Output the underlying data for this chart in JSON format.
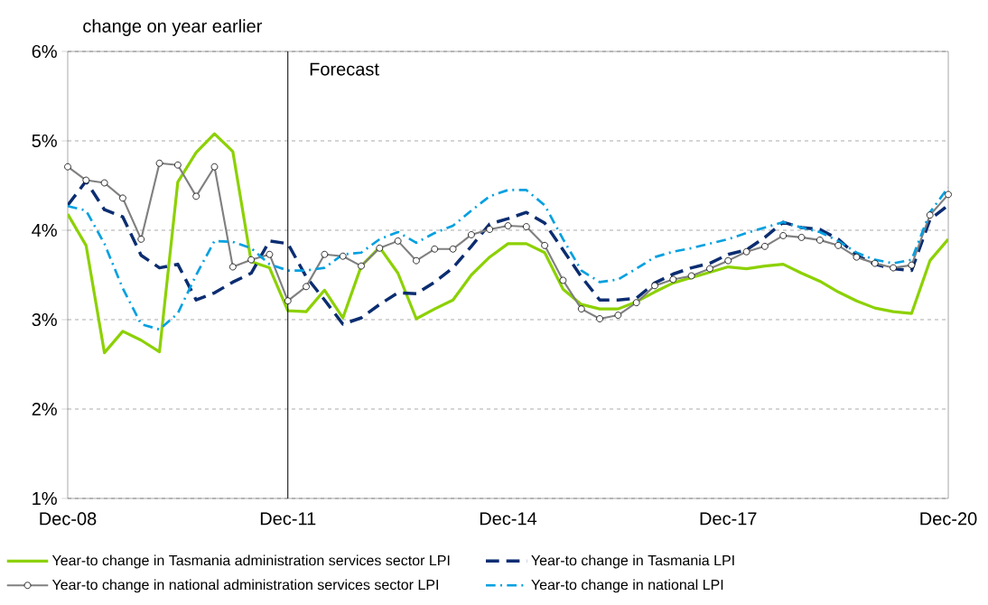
{
  "chart_data": {
    "type": "line",
    "ylabel": "change on year earlier",
    "categories": [
      "Dec-08",
      null,
      null,
      null,
      null,
      null,
      null,
      null,
      null,
      null,
      null,
      null,
      "Dec-11",
      null,
      null,
      null,
      null,
      null,
      null,
      null,
      null,
      null,
      null,
      null,
      "Dec-14",
      null,
      null,
      null,
      null,
      null,
      null,
      null,
      null,
      null,
      null,
      null,
      "Dec-17",
      null,
      null,
      null,
      null,
      null,
      null,
      null,
      null,
      null,
      null,
      null,
      "Dec-20"
    ],
    "series": [
      {
        "name": "Year-to change in Tasmania administration services sector LPI",
        "color": "#8cd100",
        "line_style": "solid",
        "marker": "none",
        "values": [
          4.18,
          3.83,
          2.63,
          2.87,
          2.77,
          2.64,
          4.54,
          4.87,
          5.08,
          4.88,
          3.65,
          3.58,
          3.1,
          3.09,
          3.33,
          3.02,
          3.6,
          3.81,
          3.52,
          3.01,
          3.12,
          3.22,
          3.5,
          3.7,
          3.85,
          3.85,
          3.75,
          3.34,
          3.17,
          3.12,
          3.12,
          3.2,
          3.31,
          3.41,
          3.47,
          3.53,
          3.59,
          3.57,
          3.6,
          3.62,
          3.52,
          3.43,
          3.31,
          3.21,
          3.13,
          3.09,
          3.07,
          3.66,
          3.9
        ]
      },
      {
        "name": "Year-to change in Tasmania LPI",
        "color": "#0b2d71",
        "line_style": "dashed",
        "marker": "none",
        "values": [
          4.28,
          4.55,
          4.23,
          4.15,
          3.72,
          3.58,
          3.62,
          3.22,
          3.3,
          3.42,
          3.52,
          3.88,
          3.85,
          3.48,
          3.22,
          2.95,
          3.02,
          3.17,
          3.3,
          3.29,
          3.42,
          3.58,
          3.82,
          4.07,
          4.13,
          4.2,
          4.08,
          3.78,
          3.48,
          3.22,
          3.22,
          3.24,
          3.41,
          3.51,
          3.58,
          3.63,
          3.73,
          3.78,
          3.92,
          4.09,
          4.03,
          4.01,
          3.9,
          3.72,
          3.62,
          3.57,
          3.55,
          4.12,
          4.28
        ]
      },
      {
        "name": "Year-to change in national administration services sector LPI",
        "color": "#808080",
        "line_style": "solid",
        "marker": "circle",
        "values": [
          4.71,
          4.56,
          4.53,
          4.36,
          3.9,
          4.75,
          4.73,
          4.38,
          4.71,
          3.59,
          3.67,
          3.73,
          3.21,
          3.37,
          3.73,
          3.71,
          3.6,
          3.8,
          3.88,
          3.66,
          3.79,
          3.79,
          3.95,
          4.01,
          4.05,
          4.04,
          3.83,
          3.44,
          3.12,
          3.01,
          3.05,
          3.19,
          3.38,
          3.45,
          3.49,
          3.57,
          3.66,
          3.76,
          3.82,
          3.94,
          3.92,
          3.89,
          3.83,
          3.7,
          3.63,
          3.58,
          3.61,
          4.17,
          4.4
        ]
      },
      {
        "name": "Year-to change in national LPI",
        "color": "#00a0e0",
        "line_style": "dashdot",
        "marker": "none",
        "values": [
          4.27,
          4.22,
          3.85,
          3.35,
          2.95,
          2.89,
          3.07,
          3.5,
          3.88,
          3.87,
          3.8,
          3.62,
          3.55,
          3.55,
          3.58,
          3.73,
          3.75,
          3.9,
          3.98,
          3.86,
          3.97,
          4.05,
          4.22,
          4.38,
          4.45,
          4.45,
          4.28,
          3.9,
          3.55,
          3.42,
          3.45,
          3.57,
          3.7,
          3.76,
          3.8,
          3.85,
          3.9,
          3.97,
          4.03,
          4.09,
          4.03,
          3.98,
          3.88,
          3.75,
          3.67,
          3.63,
          3.67,
          4.2,
          4.48
        ]
      }
    ],
    "ylim": [
      1,
      6
    ],
    "yticks": [
      {
        "value": 1,
        "label": "1%"
      },
      {
        "value": 2,
        "label": "2%"
      },
      {
        "value": 3,
        "label": "3%"
      },
      {
        "value": 4,
        "label": "4%"
      },
      {
        "value": 5,
        "label": "5%"
      },
      {
        "value": 6,
        "label": "6%"
      }
    ],
    "ref_lines": [
      {
        "axis": "x",
        "value": "Dec-11",
        "label": "Forecast",
        "color": "#000000"
      }
    ],
    "grid": "y",
    "legend": "bottom"
  }
}
